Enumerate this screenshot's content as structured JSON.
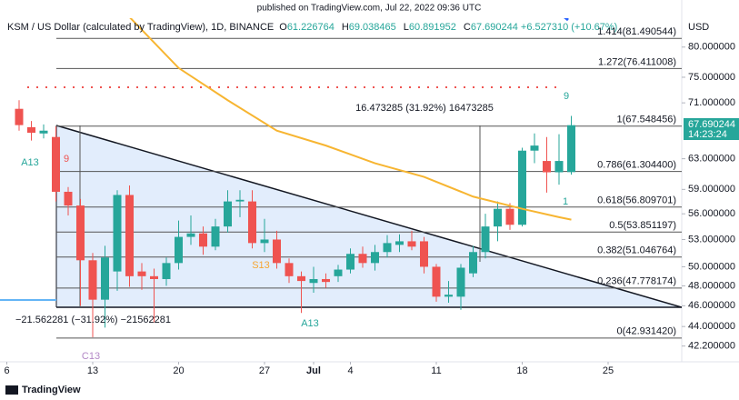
{
  "header": {
    "published": "published on TradingView.com, Jul 22, 2022 09:36 UTC",
    "symbol": "KSM / US Dollar (calculated by TradingView), 1D, BINANCE",
    "ohlc": [
      {
        "key": "O",
        "value": "61.226764"
      },
      {
        "key": "H",
        "value": "69.038465"
      },
      {
        "key": "L",
        "value": "60.891952"
      },
      {
        "key": "C",
        "value": "67.690244"
      }
    ],
    "change": "+6.527310 (+10.67%)",
    "currency": "USD",
    "logo": "TradingView",
    "last_price": "67.690244",
    "countdown": "14:23:24"
  },
  "chart_data": {
    "type": "candlestick",
    "log_scale": true,
    "grid": false,
    "x": [
      "2022-06-07",
      "2022-06-08",
      "2022-06-09",
      "2022-06-10",
      "2022-06-11",
      "2022-06-12",
      "2022-06-13",
      "2022-06-14",
      "2022-06-15",
      "2022-06-16",
      "2022-06-17",
      "2022-06-18",
      "2022-06-19",
      "2022-06-20",
      "2022-06-21",
      "2022-06-22",
      "2022-06-23",
      "2022-06-24",
      "2022-06-25",
      "2022-06-26",
      "2022-06-27",
      "2022-06-28",
      "2022-06-29",
      "2022-06-30",
      "2022-07-01",
      "2022-07-02",
      "2022-07-03",
      "2022-07-04",
      "2022-07-05",
      "2022-07-06",
      "2022-07-07",
      "2022-07-08",
      "2022-07-09",
      "2022-07-10",
      "2022-07-11",
      "2022-07-12",
      "2022-07-13",
      "2022-07-14",
      "2022-07-15",
      "2022-07-16",
      "2022-07-17",
      "2022-07-18",
      "2022-07-19",
      "2022-07-20",
      "2022-07-21",
      "2022-07-22"
    ],
    "open": [
      70.1,
      67.4,
      66.5,
      66.0,
      58.7,
      57.0,
      50.7,
      46.6,
      49.5,
      58.3,
      49.5,
      49.0,
      48.7,
      50.4,
      53.3,
      53.7,
      52.2,
      54.5,
      57.5,
      57.5,
      52.6,
      53.0,
      50.4,
      49.0,
      48.3,
      48.7,
      49.0,
      49.7,
      51.4,
      50.4,
      51.6,
      52.4,
      52.8,
      52.8,
      50.0,
      46.9,
      46.9,
      49.3,
      51.6,
      54.5,
      56.6,
      54.7,
      64.1,
      62.7,
      61.2,
      61.226764
    ],
    "high": [
      71.4,
      68.3,
      67.8,
      67.5,
      59.3,
      57.8,
      51.5,
      52.3,
      58.9,
      59.5,
      50.4,
      49.8,
      51.0,
      55.2,
      55.8,
      54.5,
      55.4,
      58.9,
      58.9,
      58.9,
      55.4,
      54.0,
      50.9,
      49.5,
      50.0,
      49.3,
      50.2,
      52.0,
      52.2,
      52.4,
      53.5,
      53.6,
      54.0,
      53.3,
      50.3,
      48.5,
      50.3,
      52.3,
      56.0,
      57.5,
      57.3,
      64.5,
      66.5,
      66.0,
      66.4,
      69.038465
    ],
    "low": [
      66.9,
      65.5,
      65.8,
      57.5,
      55.8,
      46.0,
      43.0,
      43.9,
      47.5,
      47.9,
      47.6,
      44.4,
      48.0,
      49.7,
      52.4,
      51.3,
      51.8,
      53.8,
      55.6,
      52.0,
      51.6,
      49.8,
      48.3,
      45.3,
      47.3,
      47.8,
      48.4,
      49.3,
      49.9,
      49.6,
      51.0,
      51.6,
      51.8,
      49.3,
      46.4,
      46.3,
      45.6,
      48.9,
      50.9,
      52.8,
      54.1,
      54.5,
      62.4,
      58.6,
      59.6,
      60.891952
    ],
    "close": [
      67.7,
      66.6,
      66.9,
      58.7,
      57.0,
      50.7,
      46.6,
      51.0,
      58.3,
      49.0,
      49.0,
      48.7,
      50.4,
      53.3,
      53.7,
      52.2,
      54.5,
      57.5,
      57.7,
      52.6,
      53.0,
      50.4,
      49.0,
      48.5,
      48.7,
      48.4,
      49.7,
      51.4,
      50.4,
      51.6,
      52.6,
      52.8,
      52.2,
      50.0,
      46.9,
      47.1,
      49.9,
      51.6,
      54.5,
      56.6,
      54.7,
      64.1,
      64.8,
      61.2,
      62.7,
      67.690244
    ],
    "up_color": "#26a69a",
    "down_color": "#ef5350",
    "ma": {
      "color": "#f7b531",
      "x": [
        "2022-06-16",
        "2022-06-20",
        "2022-06-24",
        "2022-06-28",
        "2022-07-02",
        "2022-07-06",
        "2022-07-10",
        "2022-07-14",
        "2022-07-18",
        "2022-07-21",
        "2022-07-22"
      ],
      "values": [
        85.3,
        76.5,
        71.4,
        66.9,
        64.8,
        62.4,
        60.6,
        58.1,
        56.6,
        55.6,
        55.3
      ]
    },
    "fib_levels": [
      {
        "label": "1.414(81.490544)",
        "value": 81.490544
      },
      {
        "label": "1.272(76.411008)",
        "value": 76.411008
      },
      {
        "label": "1(67.548456)",
        "value": 67.548456
      },
      {
        "label": "0.786(61.304400)",
        "value": 61.3044
      },
      {
        "label": "0.618(56.809701)",
        "value": 56.809701
      },
      {
        "label": "0.5(53.851197)",
        "value": 53.851197
      },
      {
        "label": "0.382(51.046764)",
        "value": 51.046764
      },
      {
        "label": "0.236(47.778174)",
        "value": 47.778174
      },
      {
        "label": "0(42.931420)",
        "value": 42.93142
      }
    ],
    "ylim": [
      40.8,
      85.1
    ],
    "yticks": [
      {
        "value": 80,
        "label": "80.000000"
      },
      {
        "value": 75,
        "label": "75.000000"
      },
      {
        "value": 71,
        "label": "71.000000"
      },
      {
        "value": 63,
        "label": "63.000000"
      },
      {
        "value": 59,
        "label": "59.000000"
      },
      {
        "value": 56,
        "label": "56.000000"
      },
      {
        "value": 53,
        "label": "53.000000"
      },
      {
        "value": 50,
        "label": "50.000000"
      },
      {
        "value": 48,
        "label": "48.000000"
      },
      {
        "value": 46,
        "label": "46.000000"
      },
      {
        "value": 44,
        "label": "44.000000"
      },
      {
        "value": 42.2,
        "label": "42.200000"
      }
    ],
    "xlim": [
      "2022-06-05",
      "2022-07-31"
    ],
    "xticks": [
      {
        "value": "2022-06-06",
        "label": "6"
      },
      {
        "value": "2022-06-13",
        "label": "13"
      },
      {
        "value": "2022-06-20",
        "label": "20"
      },
      {
        "value": "2022-06-27",
        "label": "27"
      },
      {
        "value": "2022-07-01",
        "label": "Jul"
      },
      {
        "value": "2022-07-04",
        "label": "4"
      },
      {
        "value": "2022-07-11",
        "label": "11"
      },
      {
        "value": "2022-07-18",
        "label": "18"
      },
      {
        "value": "2022-07-25",
        "label": "25"
      }
    ],
    "annotations": {
      "rise": "16.473285 (31.92%) 16473285",
      "drop": "−21.562281 (−31.92%) −21562281",
      "a13_1": "A13",
      "nine_red": "9",
      "s13": "S13",
      "a13_2": "A13",
      "c13": "C13",
      "nine_teal": "9",
      "one_teal": "1"
    }
  }
}
